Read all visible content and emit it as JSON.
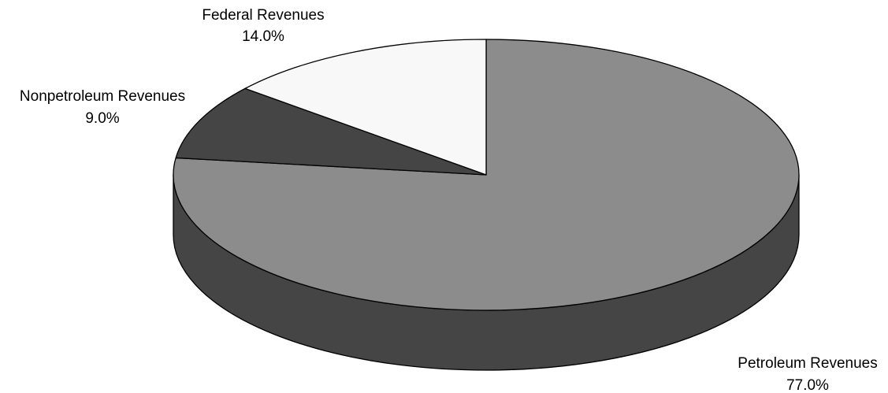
{
  "chart_data": {
    "type": "pie",
    "title": "",
    "slices": [
      {
        "label": "Petroleum Revenues",
        "value": 77.0,
        "display": "77.0%",
        "color": "#8c8c8c",
        "side_color": "#454545"
      },
      {
        "label": "Nonpetroleum Revenues",
        "value": 9.0,
        "display": "9.0%",
        "color": "#454545",
        "side_color": "#454545"
      },
      {
        "label": "Federal Revenues",
        "value": 14.0,
        "display": "14.0%",
        "color": "#f8f8f8",
        "side_color": "#f8f8f8"
      }
    ],
    "legend": "none",
    "three_d": true,
    "start_angle": "12 o'clock",
    "direction": "clockwise"
  }
}
